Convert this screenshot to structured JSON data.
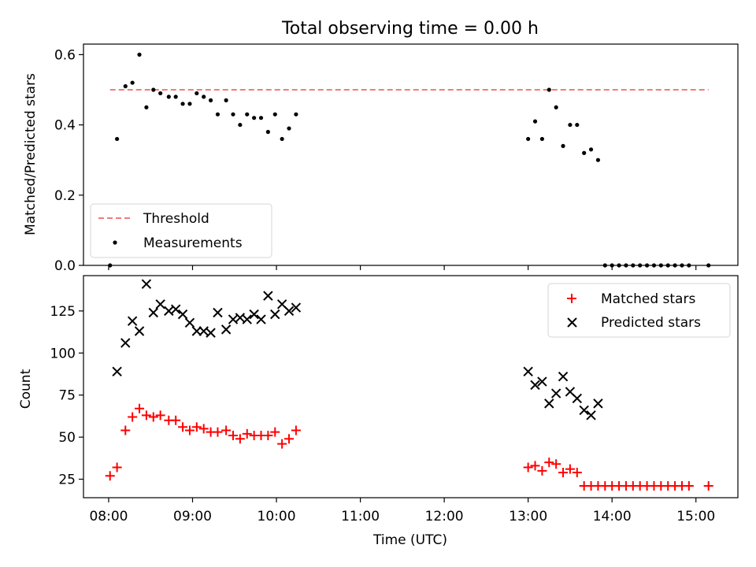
{
  "chart_data": [
    {
      "type": "scatter",
      "title": "Total observing time = 0.00 h",
      "xlabel": "",
      "ylabel": "Matched/Predicted stars",
      "xlim": [
        "07:42",
        "15:30"
      ],
      "ylim": [
        0,
        0.63
      ],
      "yticks": [
        0.0,
        0.2,
        0.4,
        0.6
      ],
      "ytick_labels": [
        "0.0",
        "0.2",
        "0.4",
        "0.6"
      ],
      "legend": "lower-left",
      "threshold": {
        "name": "Threshold",
        "y": 0.5,
        "x_start": "08:01",
        "x_end": "15:09",
        "color": "#f47a7a",
        "style": "dashed"
      },
      "series": [
        {
          "name": "Measurements",
          "marker": "dot",
          "color": "#000000",
          "x": [
            "08:01",
            "08:06",
            "08:12",
            "08:17",
            "08:22",
            "08:27",
            "08:32",
            "08:37",
            "08:43",
            "08:48",
            "08:53",
            "08:58",
            "09:03",
            "09:08",
            "09:13",
            "09:18",
            "09:24",
            "09:29",
            "09:34",
            "09:39",
            "09:44",
            "09:49",
            "09:54",
            "09:59",
            "10:04",
            "10:09",
            "10:14",
            "13:00",
            "13:05",
            "13:10",
            "13:15",
            "13:20",
            "13:25",
            "13:30",
            "13:35",
            "13:40",
            "13:45",
            "13:50",
            "13:55",
            "14:00",
            "14:05",
            "14:10",
            "14:15",
            "14:20",
            "14:25",
            "14:30",
            "14:35",
            "14:40",
            "14:45",
            "14:50",
            "14:55",
            "15:09"
          ],
          "y": [
            0.0,
            0.36,
            0.51,
            0.52,
            0.6,
            0.45,
            0.5,
            0.49,
            0.48,
            0.48,
            0.46,
            0.46,
            0.49,
            0.48,
            0.47,
            0.43,
            0.47,
            0.43,
            0.4,
            0.43,
            0.42,
            0.42,
            0.38,
            0.43,
            0.36,
            0.39,
            0.43,
            0.36,
            0.41,
            0.36,
            0.5,
            0.45,
            0.34,
            0.4,
            0.4,
            0.32,
            0.33,
            0.3,
            0.0,
            0.0,
            0.0,
            0.0,
            0.0,
            0.0,
            0.0,
            0.0,
            0.0,
            0.0,
            0.0,
            0.0,
            0.0,
            0.0
          ]
        }
      ]
    },
    {
      "type": "scatter",
      "title": "",
      "xlabel": "Time (UTC)",
      "ylabel": "Count",
      "xlim": [
        "07:42",
        "15:30"
      ],
      "ylim": [
        14,
        146
      ],
      "xticks": [
        "08:00",
        "09:00",
        "10:00",
        "11:00",
        "12:00",
        "13:00",
        "14:00",
        "15:00"
      ],
      "xtick_labels": [
        "08:00",
        "09:00",
        "10:00",
        "11:00",
        "12:00",
        "13:00",
        "14:00",
        "15:00"
      ],
      "yticks": [
        25,
        50,
        75,
        100,
        125
      ],
      "ytick_labels": [
        "25",
        "50",
        "75",
        "100",
        "125"
      ],
      "legend": "top-right",
      "series": [
        {
          "name": "Matched stars",
          "marker": "plus",
          "color": "#ff0000",
          "x": [
            "08:01",
            "08:06",
            "08:12",
            "08:17",
            "08:22",
            "08:27",
            "08:32",
            "08:37",
            "08:43",
            "08:48",
            "08:53",
            "08:58",
            "09:03",
            "09:08",
            "09:13",
            "09:18",
            "09:24",
            "09:29",
            "09:34",
            "09:39",
            "09:44",
            "09:49",
            "09:54",
            "09:59",
            "10:04",
            "10:09",
            "10:14",
            "13:00",
            "13:05",
            "13:10",
            "13:15",
            "13:20",
            "13:25",
            "13:30",
            "13:35",
            "13:40",
            "13:45",
            "13:50",
            "13:55",
            "14:00",
            "14:05",
            "14:10",
            "14:15",
            "14:20",
            "14:25",
            "14:30",
            "14:35",
            "14:40",
            "14:45",
            "14:50",
            "14:55",
            "15:09"
          ],
          "y": [
            27,
            32,
            54,
            62,
            67,
            63,
            62,
            63,
            60,
            60,
            56,
            54,
            56,
            55,
            53,
            53,
            54,
            51,
            49,
            52,
            51,
            51,
            51,
            53,
            46,
            49,
            54,
            32,
            33,
            30,
            35,
            34,
            29,
            31,
            29,
            21,
            21,
            21,
            21,
            21,
            21,
            21,
            21,
            21,
            21,
            21,
            21,
            21,
            21,
            21,
            21,
            21
          ]
        },
        {
          "name": "Predicted stars",
          "marker": "x",
          "color": "#000000",
          "x": [
            "08:06",
            "08:12",
            "08:17",
            "08:22",
            "08:27",
            "08:32",
            "08:37",
            "08:43",
            "08:48",
            "08:53",
            "08:58",
            "09:03",
            "09:08",
            "09:13",
            "09:18",
            "09:24",
            "09:29",
            "09:34",
            "09:39",
            "09:44",
            "09:49",
            "09:54",
            "09:59",
            "10:04",
            "10:09",
            "10:14",
            "13:00",
            "13:05",
            "13:10",
            "13:15",
            "13:20",
            "13:25",
            "13:30",
            "13:35",
            "13:40",
            "13:45",
            "13:50"
          ],
          "y": [
            89,
            106,
            119,
            113,
            141,
            124,
            129,
            125,
            126,
            123,
            118,
            113,
            113,
            112,
            124,
            114,
            120,
            121,
            120,
            123,
            120,
            134,
            123,
            129,
            125,
            127,
            89,
            81,
            83,
            70,
            76,
            86,
            77,
            73,
            66,
            63,
            70
          ]
        }
      ]
    }
  ]
}
